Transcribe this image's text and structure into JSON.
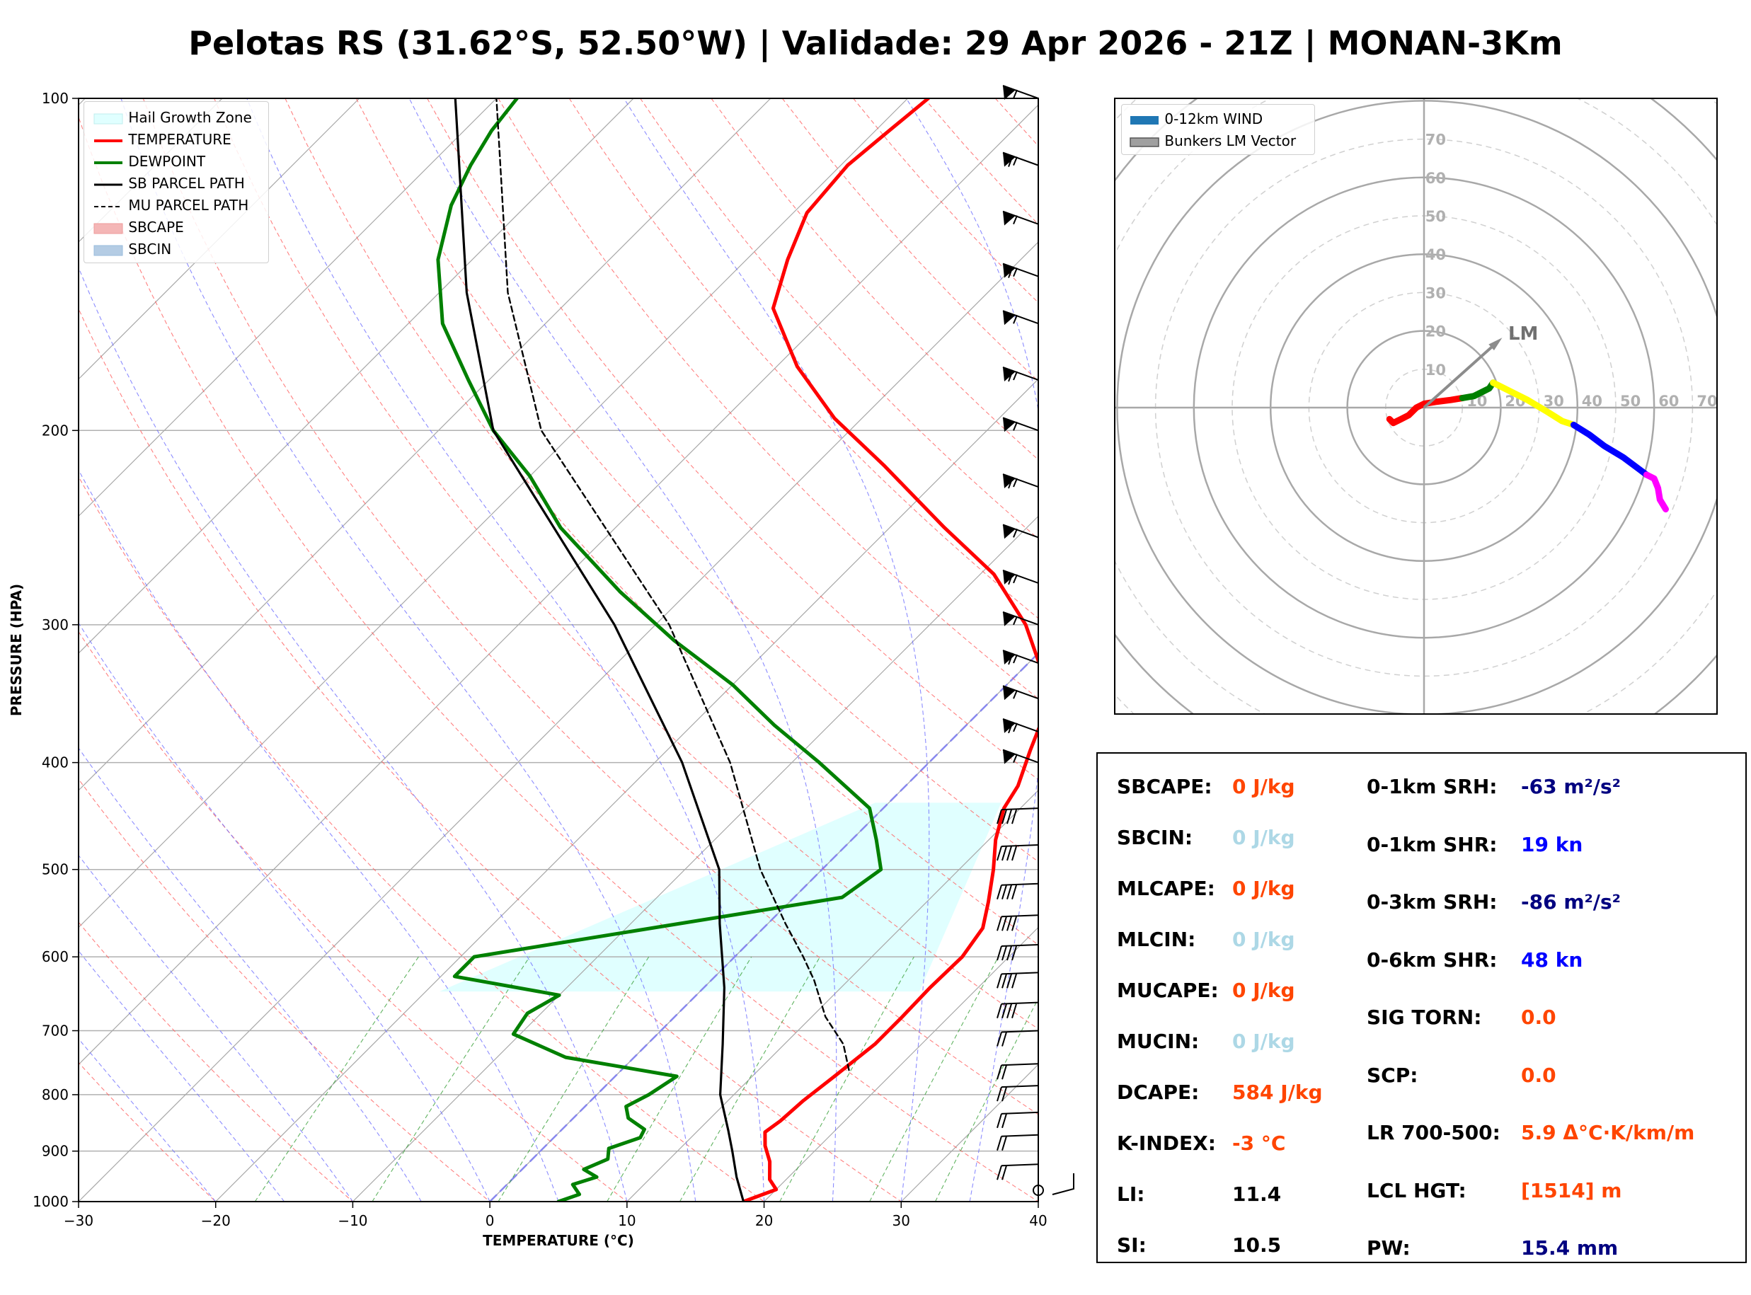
{
  "title": "Pelotas RS (31.62°S, 52.50°W) | Validade: 29 Apr 2026 - 21Z | MONAN-3Km",
  "chart_data": [
    {
      "type": "skew-t",
      "xlabel": "TEMPERATURE (°C)",
      "ylabel": "PRESSURE (HPA)",
      "xlim": [
        -30,
        40
      ],
      "ylim": [
        1000,
        100
      ],
      "x_ticks": [
        "−30",
        "−20",
        "−10",
        "0",
        "10",
        "20",
        "30",
        "40"
      ],
      "x_tick_values": [
        -30,
        -20,
        -10,
        0,
        10,
        20,
        30,
        40
      ],
      "y_ticks": [
        "100",
        "200",
        "300",
        "400",
        "500",
        "600",
        "700",
        "800",
        "900",
        "1000"
      ],
      "y_tick_values": [
        100,
        200,
        300,
        400,
        500,
        600,
        700,
        800,
        900,
        1000
      ],
      "legend": [
        {
          "label": "Hail Growth Zone",
          "color": "#e0ffff",
          "style": "patch"
        },
        {
          "label": "TEMPERATURE",
          "color": "#ff0000",
          "style": "solid"
        },
        {
          "label": "DEWPOINT",
          "color": "#008000",
          "style": "solid"
        },
        {
          "label": "SB PARCEL PATH",
          "color": "#000000",
          "style": "solid"
        },
        {
          "label": "MU PARCEL PATH",
          "color": "#000000",
          "style": "dashed"
        },
        {
          "label": "SBCAPE",
          "color": "#f4b6b6",
          "style": "patch"
        },
        {
          "label": "SBCIN",
          "color": "#b4cce4",
          "style": "patch"
        }
      ],
      "legend_position": "upper-left",
      "hail_growth_zone_hpa": [
        645,
        435
      ],
      "series": [
        {
          "name": "TEMPERATURE",
          "color": "#ff0000",
          "points": [
            [
              1000,
              18.5
            ],
            [
              975,
              20.0
            ],
            [
              955,
              18.8
            ],
            [
              920,
              17.5
            ],
            [
              890,
              16.0
            ],
            [
              865,
              15.0
            ],
            [
              845,
              15.3
            ],
            [
              810,
              15.5
            ],
            [
              770,
              16.0
            ],
            [
              720,
              16.6
            ],
            [
              680,
              16.6
            ],
            [
              640,
              16.5
            ],
            [
              600,
              16.6
            ],
            [
              565,
              16.0
            ],
            [
              535,
              14.5
            ],
            [
              500,
              12.5
            ],
            [
              470,
              10.5
            ],
            [
              440,
              8.8
            ],
            [
              420,
              8.2
            ],
            [
              390,
              6.5
            ],
            [
              355,
              4.5
            ],
            [
              330,
              1.5
            ],
            [
              300,
              -3.0
            ],
            [
              270,
              -9.0
            ],
            [
              245,
              -16.0
            ],
            [
              215,
              -25.0
            ],
            [
              195,
              -32.0
            ],
            [
              175,
              -38.5
            ],
            [
              155,
              -44.5
            ],
            [
              140,
              -47.0
            ],
            [
              127,
              -49.0
            ],
            [
              115,
              -49.5
            ],
            [
              107,
              -49.0
            ],
            [
              100,
              -48.5
            ]
          ]
        },
        {
          "name": "DEWPOINT",
          "color": "#008000",
          "points": [
            [
              1000,
              5.0
            ],
            [
              985,
              6.0
            ],
            [
              965,
              4.8
            ],
            [
              950,
              6.0
            ],
            [
              935,
              4.5
            ],
            [
              915,
              5.5
            ],
            [
              895,
              4.8
            ],
            [
              875,
              6.3
            ],
            [
              860,
              6.0
            ],
            [
              840,
              4.0
            ],
            [
              820,
              3.0
            ],
            [
              800,
              3.8
            ],
            [
              770,
              4.5
            ],
            [
              740,
              -5.0
            ],
            [
              705,
              -10.5
            ],
            [
              675,
              -11.0
            ],
            [
              650,
              -10.0
            ],
            [
              625,
              -19.0
            ],
            [
              600,
              -19.0
            ],
            [
              560,
              -6.5
            ],
            [
              530,
              3.5
            ],
            [
              500,
              4.3
            ],
            [
              470,
              1.8
            ],
            [
              440,
              -1.0
            ],
            [
              400,
              -8.0
            ],
            [
              370,
              -14.0
            ],
            [
              340,
              -20.0
            ],
            [
              310,
              -27.5
            ],
            [
              280,
              -35.0
            ],
            [
              245,
              -44.0
            ],
            [
              220,
              -50.0
            ],
            [
              200,
              -56.0
            ],
            [
              180,
              -61.5
            ],
            [
              160,
              -67.5
            ],
            [
              140,
              -72.5
            ],
            [
              125,
              -75.5
            ],
            [
              115,
              -77.0
            ],
            [
              107,
              -78.0
            ],
            [
              100,
              -78.5
            ]
          ]
        },
        {
          "name": "SB PARCEL PATH",
          "color": "#000000",
          "points": [
            [
              1000,
              18.5
            ],
            [
              950,
              16.2
            ],
            [
              900,
              14.0
            ],
            [
              862,
              12.2
            ],
            [
              800,
              9.0
            ],
            [
              720,
              5.5
            ],
            [
              640,
              1.5
            ],
            [
              560,
              -3.5
            ],
            [
              500,
              -7.5
            ],
            [
              400,
              -18.0
            ],
            [
              300,
              -33.0
            ],
            [
              200,
              -56.0
            ],
            [
              150,
              -68.0
            ],
            [
              100,
              -83.0
            ]
          ]
        },
        {
          "name": "MU PARCEL PATH",
          "color": "#000000",
          "points": [
            [
              760,
              16.6
            ],
            [
              720,
              14.3
            ],
            [
              680,
              11.0
            ],
            [
              630,
              7.5
            ],
            [
              600,
              5.0
            ],
            [
              560,
              1.3
            ],
            [
              500,
              -4.5
            ],
            [
              400,
              -14.5
            ],
            [
              300,
              -29.0
            ],
            [
              200,
              -52.5
            ],
            [
              150,
              -65.0
            ],
            [
              100,
              -80.0
            ]
          ]
        }
      ],
      "wind_barbs_hpa": [
        100,
        115,
        130,
        145,
        160,
        180,
        200,
        225,
        250,
        275,
        300,
        325,
        350,
        375,
        400,
        440,
        475,
        515,
        550,
        585,
        620,
        660,
        700,
        750,
        785,
        830,
        870,
        925,
        1000
      ]
    },
    {
      "type": "hodograph",
      "ring_labels": [
        "10",
        "20",
        "30",
        "40",
        "50",
        "60",
        "70"
      ],
      "ring_values": [
        10,
        20,
        30,
        40,
        50,
        60,
        70
      ],
      "lm_label": "LM",
      "legend": [
        {
          "label": "0-12km WIND",
          "color": "#1f77b4"
        },
        {
          "label": "Bunkers LM Vector",
          "color": "#a0a0a0"
        }
      ],
      "legend_position": "upper-left",
      "bunkers_lm_kn": [
        19,
        17
      ],
      "segments": [
        {
          "color": "#ff0000",
          "points": [
            [
              -9,
              -3
            ],
            [
              -8,
              -4
            ],
            [
              -6,
              -3
            ],
            [
              -4,
              -2
            ],
            [
              -2,
              0
            ],
            [
              0,
              1
            ],
            [
              3,
              1.5
            ],
            [
              7,
              2
            ],
            [
              10,
              2.5
            ]
          ]
        },
        {
          "color": "#008000",
          "points": [
            [
              10,
              2.5
            ],
            [
              13,
              3
            ],
            [
              15,
              4
            ],
            [
              17,
              5
            ],
            [
              18,
              6.5
            ]
          ]
        },
        {
          "color": "#ffff00",
          "points": [
            [
              18,
              6.5
            ],
            [
              22,
              4.5
            ],
            [
              27,
              2
            ],
            [
              32,
              -1
            ],
            [
              36,
              -3.5
            ],
            [
              39,
              -4.5
            ]
          ]
        },
        {
          "color": "#0000ff",
          "points": [
            [
              39,
              -4.5
            ],
            [
              43,
              -7
            ],
            [
              47,
              -10
            ],
            [
              52,
              -13
            ],
            [
              56,
              -16
            ],
            [
              58,
              -17.5
            ]
          ]
        },
        {
          "color": "#ff00ff",
          "points": [
            [
              58,
              -17.5
            ],
            [
              60,
              -18.5
            ],
            [
              61,
              -21
            ],
            [
              61.5,
              -24
            ],
            [
              63,
              -26.5
            ]
          ]
        }
      ]
    }
  ],
  "indices": {
    "left": [
      {
        "label": "SBCAPE:",
        "value": "0 J/kg",
        "color": "#ff4500"
      },
      {
        "label": "SBCIN:",
        "value": "0 J/kg",
        "color": "#add8e6"
      },
      {
        "label": "MLCAPE:",
        "value": "0 J/kg",
        "color": "#ff4500"
      },
      {
        "label": "MLCIN:",
        "value": "0 J/kg",
        "color": "#add8e6"
      },
      {
        "label": "MUCAPE:",
        "value": "0 J/kg",
        "color": "#ff4500"
      },
      {
        "label": "MUCIN:",
        "value": "0 J/kg",
        "color": "#add8e6"
      },
      {
        "label": "DCAPE:",
        "value": "584 J/kg",
        "color": "#ff4500"
      },
      {
        "label": "K-INDEX:",
        "value": "-3 °C",
        "color": "#ff4500"
      },
      {
        "label": "LI:",
        "value": "11.4",
        "color": "#000000"
      },
      {
        "label": "SI:",
        "value": "10.5",
        "color": "#000000"
      }
    ],
    "right": [
      {
        "label": "0-1km SRH:",
        "value": "-63 m²/s²",
        "color": "#000080"
      },
      {
        "label": "0-1km SHR:",
        "value": "19 kn",
        "color": "#0000ff"
      },
      {
        "label": "0-3km SRH:",
        "value": "-86 m²/s²",
        "color": "#000080"
      },
      {
        "label": "0-6km SHR:",
        "value": "48 kn",
        "color": "#0000ff"
      },
      {
        "label": "SIG TORN:",
        "value": "0.0",
        "color": "#ff4500"
      },
      {
        "label": "SCP:",
        "value": "0.0",
        "color": "#ff4500"
      },
      {
        "label": "LR 700-500:",
        "value": "5.9 Δ°C·K/km/m",
        "color": "#ff4500"
      },
      {
        "label": "LCL HGT:",
        "value": "[1514] m",
        "color": "#ff4500"
      },
      {
        "label": "PW:",
        "value": "15.4 mm",
        "color": "#000080"
      }
    ]
  }
}
